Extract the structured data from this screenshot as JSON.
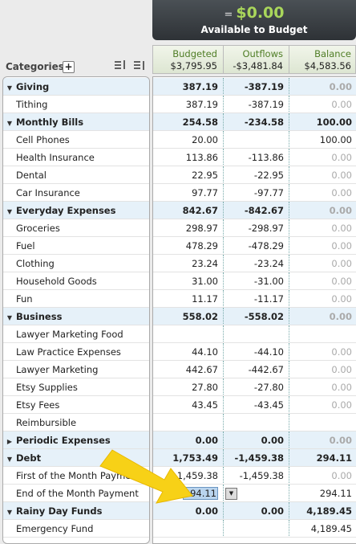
{
  "header": {
    "equals": "=",
    "amount": "$0.00",
    "label": "Available to Budget"
  },
  "categories_label": "Categories",
  "columns": [
    {
      "title": "Budgeted",
      "total": "$3,795.95"
    },
    {
      "title": "Outflows",
      "total": "-$3,481.84"
    },
    {
      "title": "Balance",
      "total": "$4,583.56"
    }
  ],
  "rows": [
    {
      "label": "Giving",
      "group": true,
      "cells": [
        "387.19",
        "-387.19",
        "0.00"
      ]
    },
    {
      "label": "Tithing",
      "cells": [
        "387.19",
        "-387.19",
        "0.00"
      ]
    },
    {
      "label": "Monthly Bills",
      "group": true,
      "cells": [
        "254.58",
        "-234.58",
        "100.00"
      ]
    },
    {
      "label": "Cell Phones",
      "cells": [
        "20.00",
        null,
        "100.00"
      ]
    },
    {
      "label": "Health Insurance",
      "cells": [
        "113.86",
        "-113.86",
        "0.00"
      ]
    },
    {
      "label": "Dental",
      "cells": [
        "22.95",
        "-22.95",
        "0.00"
      ]
    },
    {
      "label": "Car Insurance",
      "cells": [
        "97.77",
        "-97.77",
        "0.00"
      ]
    },
    {
      "label": "Everyday Expenses",
      "group": true,
      "cells": [
        "842.67",
        "-842.67",
        "0.00"
      ]
    },
    {
      "label": "Groceries",
      "cells": [
        "298.97",
        "-298.97",
        "0.00"
      ]
    },
    {
      "label": "Fuel",
      "cells": [
        "478.29",
        "-478.29",
        "0.00"
      ]
    },
    {
      "label": "Clothing",
      "cells": [
        "23.24",
        "-23.24",
        "0.00"
      ]
    },
    {
      "label": "Household Goods",
      "cells": [
        "31.00",
        "-31.00",
        "0.00"
      ]
    },
    {
      "label": "Fun",
      "cells": [
        "11.17",
        "-11.17",
        "0.00"
      ]
    },
    {
      "label": "Business",
      "group": true,
      "cells": [
        "558.02",
        "-558.02",
        "0.00"
      ]
    },
    {
      "label": "Lawyer Marketing Food",
      "cells": [
        null,
        null,
        null
      ]
    },
    {
      "label": "Law Practice Expenses",
      "cells": [
        "44.10",
        "-44.10",
        "0.00"
      ]
    },
    {
      "label": "Lawyer Marketing",
      "cells": [
        "442.67",
        "-442.67",
        "0.00"
      ]
    },
    {
      "label": "Etsy Supplies",
      "cells": [
        "27.80",
        "-27.80",
        "0.00"
      ]
    },
    {
      "label": "Etsy Fees",
      "cells": [
        "43.45",
        "-43.45",
        "0.00"
      ]
    },
    {
      "label": "Reimbursible",
      "cells": [
        null,
        null,
        null
      ]
    },
    {
      "label": "Periodic Expenses",
      "group": true,
      "collapsed": true,
      "cells": [
        "0.00",
        "0.00",
        "0.00"
      ]
    },
    {
      "label": "Debt",
      "group": true,
      "cells": [
        "1,753.49",
        "-1,459.38",
        "294.11"
      ]
    },
    {
      "label": "First of the Month Payment",
      "cells": [
        "1,459.38",
        "-1,459.38",
        "0.00"
      ]
    },
    {
      "label": "End of the Month Payment",
      "editing": true,
      "cells": [
        "294.11",
        null,
        "294.11"
      ]
    },
    {
      "label": "Rainy Day Funds",
      "group": true,
      "cells": [
        "0.00",
        "0.00",
        "4,189.45"
      ]
    },
    {
      "label": "Emergency Fund",
      "cells": [
        null,
        null,
        "4,189.45"
      ]
    }
  ]
}
